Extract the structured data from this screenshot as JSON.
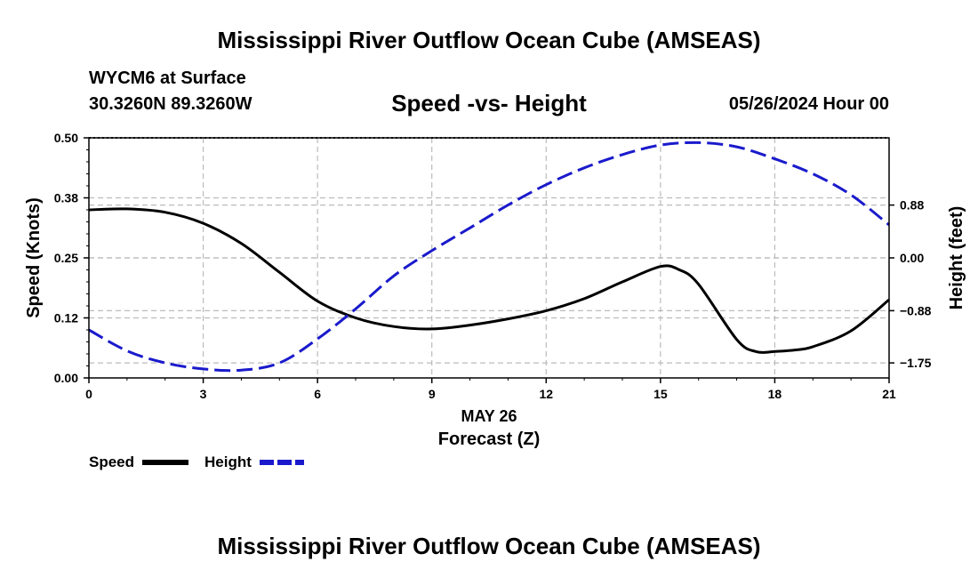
{
  "title": "Mississippi River Outflow Ocean Cube (AMSEAS)",
  "footer_title": "Mississippi River Outflow Ocean Cube (AMSEAS)",
  "station": "WYCM6 at Surface",
  "coords": "30.3260N  89.3260W",
  "subtitle": "Speed -vs- Height",
  "date": "05/26/2024 Hour 00",
  "colors": {
    "speed": "#000000",
    "height": "#1a1acc",
    "grid": "#bbbbbb"
  },
  "chart_data": {
    "type": "line",
    "xlabel_date": "MAY 26",
    "xlabel": "Forecast (Z)",
    "ylabel_left": "Speed (Knots)",
    "ylabel_right": "Height (feet)",
    "xlim": [
      0,
      21
    ],
    "ylim_left": [
      0,
      0.5
    ],
    "ylim_right": [
      -2.0,
      2.0
    ],
    "x_ticks": [
      0,
      3,
      6,
      9,
      12,
      15,
      18,
      21
    ],
    "x_tick_labels": [
      "0",
      "3",
      "6",
      "9",
      "12",
      "15",
      "18",
      "21"
    ],
    "y_left_ticks": [
      0,
      0.125,
      0.25,
      0.375,
      0.5
    ],
    "y_left_tick_labels": [
      "0.00",
      "0.12",
      "0.25",
      "0.38",
      "0.50"
    ],
    "y_right_ticks": [
      -1.75,
      -0.88,
      0.0,
      0.88
    ],
    "y_right_tick_labels": [
      "−1.75",
      "−0.88",
      "0.00",
      "0.88"
    ],
    "legend": [
      "Speed",
      "Height"
    ],
    "series": [
      {
        "name": "Speed",
        "axis": "left",
        "style": "solid",
        "x": [
          0,
          1,
          2,
          3,
          4,
          5,
          6,
          7,
          8,
          9,
          10,
          11,
          12,
          13,
          14,
          15,
          15.5,
          16,
          17,
          17.5,
          18,
          18.5,
          19,
          20,
          21
        ],
        "y": [
          0.35,
          0.352,
          0.345,
          0.322,
          0.28,
          0.22,
          0.16,
          0.125,
          0.107,
          0.102,
          0.11,
          0.123,
          0.14,
          0.165,
          0.2,
          0.232,
          0.225,
          0.195,
          0.08,
          0.055,
          0.055,
          0.058,
          0.065,
          0.098,
          0.163
        ]
      },
      {
        "name": "Height",
        "axis": "right",
        "style": "dashed",
        "x": [
          0,
          1,
          2,
          3,
          4,
          5,
          6,
          7,
          8,
          9,
          10,
          11,
          12,
          13,
          14,
          15,
          16,
          17,
          18,
          19,
          20,
          21
        ],
        "y": [
          -1.2,
          -1.55,
          -1.75,
          -1.85,
          -1.87,
          -1.75,
          -1.35,
          -0.85,
          -0.3,
          0.12,
          0.5,
          0.88,
          1.22,
          1.5,
          1.72,
          1.88,
          1.92,
          1.85,
          1.65,
          1.4,
          1.05,
          0.55
        ]
      }
    ]
  }
}
